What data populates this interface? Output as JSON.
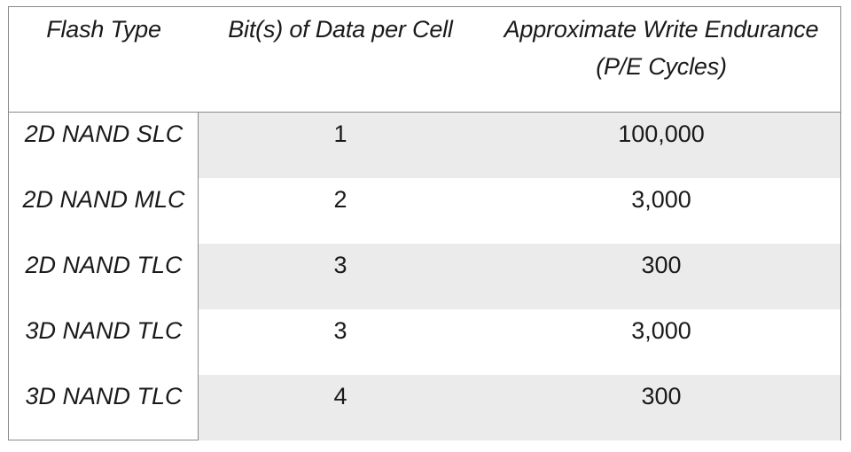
{
  "table": {
    "headers": {
      "col1": "Flash Type",
      "col2": "Bit(s) of Data per Cell",
      "col3_line1": "Approximate Write Endurance",
      "col3_line2": "(P/E Cycles)"
    },
    "rows": [
      {
        "type": "2D NAND SLC",
        "bits": "1",
        "endurance": "100,000"
      },
      {
        "type": "2D NAND MLC",
        "bits": "2",
        "endurance": "3,000"
      },
      {
        "type": "2D NAND TLC",
        "bits": "3",
        "endurance": "300"
      },
      {
        "type": "3D NAND TLC",
        "bits": "3",
        "endurance": "3,000"
      },
      {
        "type": "3D NAND TLC",
        "bits": "4",
        "endurance": "300"
      }
    ]
  },
  "colors": {
    "shaded_row": "#ebebeb",
    "border": "#8a8a8a",
    "text": "#1a1a1a"
  }
}
